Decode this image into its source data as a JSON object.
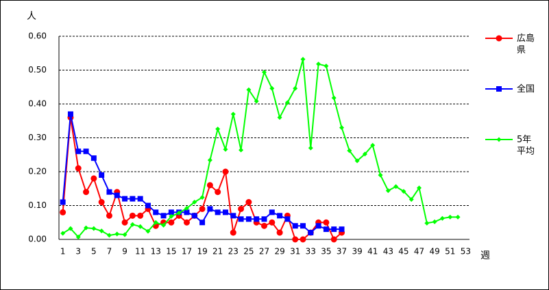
{
  "chart_data": {
    "type": "line",
    "y_label": "人",
    "x_label": "週",
    "categories": [
      1,
      null,
      3,
      null,
      5,
      null,
      7,
      null,
      9,
      null,
      11,
      null,
      13,
      null,
      15,
      null,
      17,
      null,
      19,
      null,
      21,
      null,
      23,
      null,
      25,
      null,
      27,
      null,
      29,
      null,
      31,
      null,
      33,
      null,
      35,
      null,
      37,
      null,
      39,
      null,
      41,
      null,
      43,
      null,
      45,
      null,
      47,
      null,
      49,
      null,
      51,
      null,
      53
    ],
    "ylim": [
      0,
      0.6
    ],
    "yticks": [
      {
        "value": 0,
        "label": "0.00"
      },
      {
        "value": 0.1,
        "label": "0.10"
      },
      {
        "value": 0.2,
        "label": "0.20"
      },
      {
        "value": 0.3,
        "label": "0.30"
      },
      {
        "value": 0.4,
        "label": "0.40"
      },
      {
        "value": 0.5,
        "label": "0.50"
      },
      {
        "value": 0.6,
        "label": "0.60"
      }
    ],
    "grid": true,
    "legend": "right",
    "series": [
      {
        "name": "広島県",
        "color": "#ff0000",
        "marker": "circle",
        "values": [
          0.08,
          0.36,
          0.21,
          0.14,
          0.18,
          0.11,
          0.07,
          0.14,
          0.05,
          0.07,
          0.07,
          0.09,
          0.04,
          0.05,
          0.05,
          0.07,
          0.05,
          0.07,
          0.09,
          0.16,
          0.14,
          0.2,
          0.02,
          0.09,
          0.11,
          0.05,
          0.04,
          0.05,
          0.02,
          0.07,
          0,
          0,
          0.02,
          0.05,
          0.05,
          0,
          0.02,
          null,
          null,
          null,
          null,
          null,
          null,
          null,
          null,
          null,
          null,
          null,
          null,
          null,
          null,
          null,
          null
        ]
      },
      {
        "name": "全国",
        "color": "#0000ff",
        "marker": "square",
        "values": [
          0.11,
          0.37,
          0.26,
          0.26,
          0.24,
          0.19,
          0.14,
          0.13,
          0.12,
          0.12,
          0.12,
          0.1,
          0.08,
          0.07,
          0.08,
          0.08,
          0.08,
          0.07,
          0.05,
          0.09,
          0.08,
          0.08,
          0.07,
          0.06,
          0.06,
          0.06,
          0.06,
          0.08,
          0.07,
          0.06,
          0.04,
          0.04,
          0.02,
          0.04,
          0.03,
          0.03,
          0.03,
          null,
          null,
          null,
          null,
          null,
          null,
          null,
          null,
          null,
          null,
          null,
          null,
          null,
          null,
          null,
          null
        ]
      },
      {
        "name": "5年平均",
        "color": "#00ff00",
        "marker": "diamond",
        "values": [
          0.018,
          0.032,
          0.007,
          0.034,
          0.032,
          0.025,
          0.012,
          0.016,
          0.014,
          0.044,
          0.038,
          0.024,
          0.05,
          0.042,
          0.068,
          0.078,
          0.092,
          0.11,
          0.124,
          0.234,
          0.326,
          0.266,
          0.37,
          0.264,
          0.442,
          0.408,
          0.494,
          0.446,
          0.36,
          0.404,
          0.446,
          0.532,
          0.27,
          0.518,
          0.512,
          0.418,
          0.33,
          0.262,
          0.232,
          0.252,
          0.278,
          0.19,
          0.144,
          0.156,
          0.142,
          0.118,
          0.152,
          0.048,
          0.052,
          0.062,
          0.066,
          0.066,
          null
        ]
      }
    ]
  }
}
